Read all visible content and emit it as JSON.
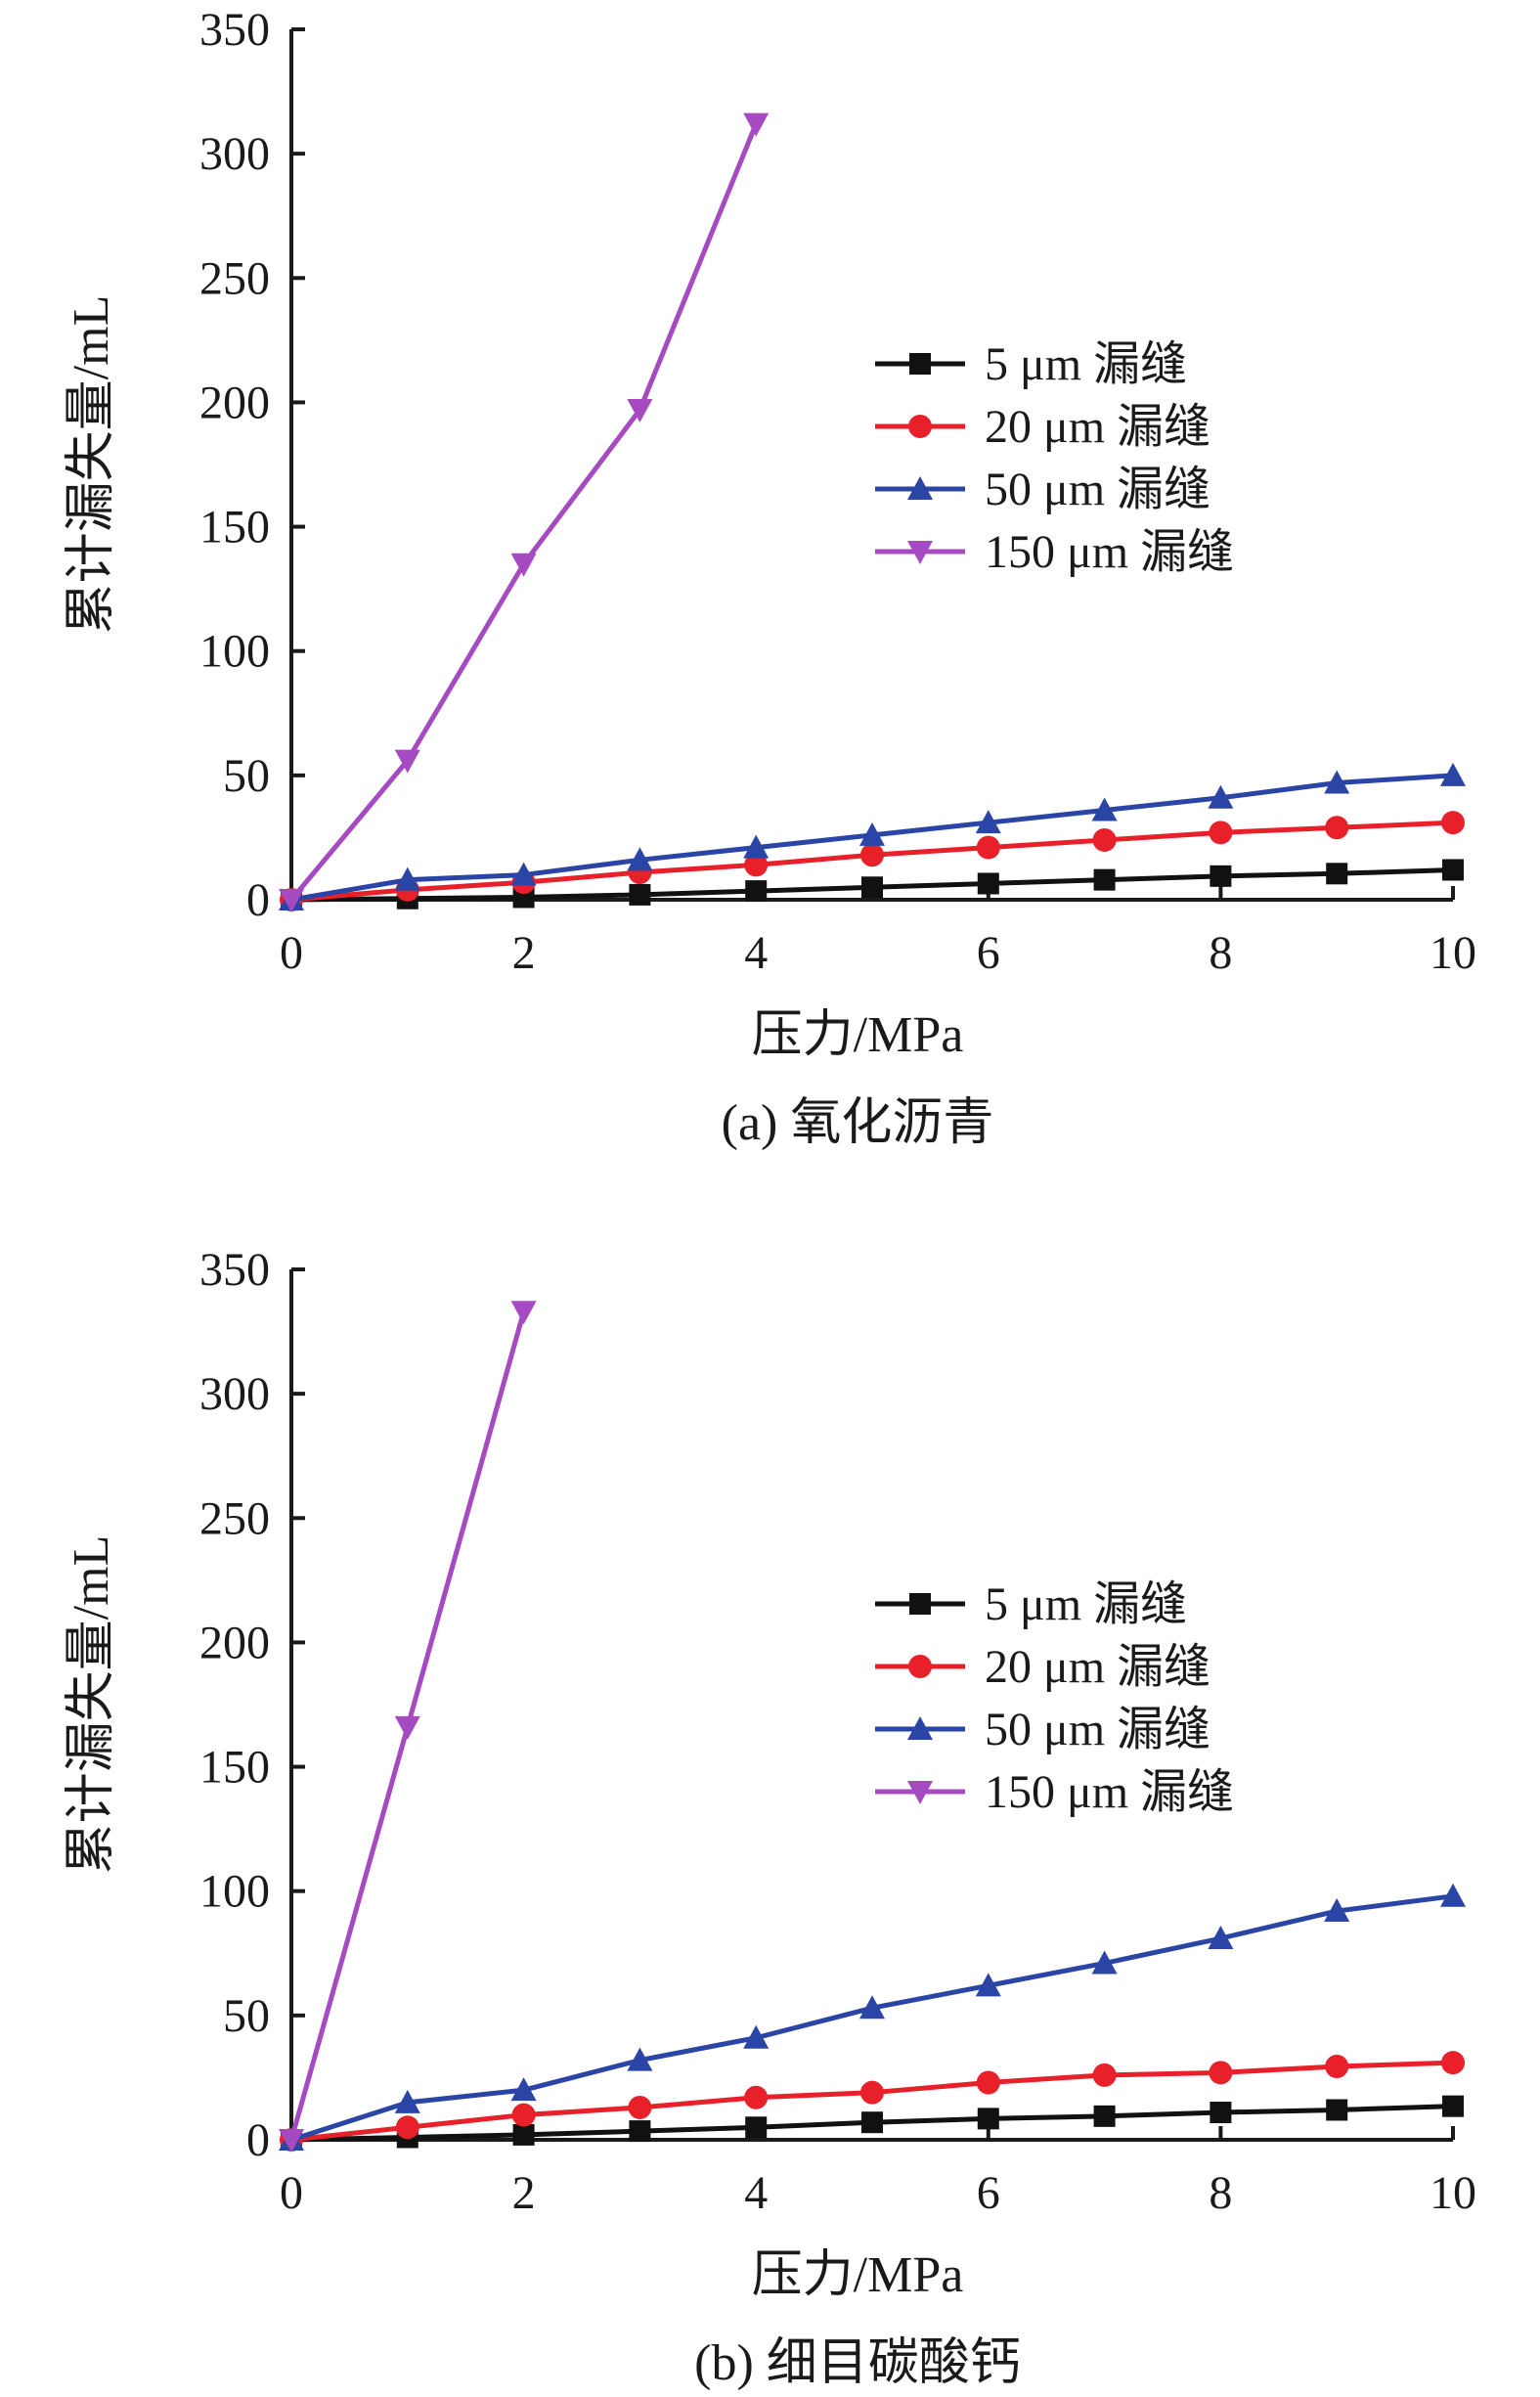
{
  "colors": {
    "axis": "#1a1a1a",
    "series_5um": "#111111",
    "series_20um": "#e8202a",
    "series_50um": "#2a45a6",
    "series_150um": "#a64ac2"
  },
  "chart_data": [
    {
      "type": "line",
      "caption": "(a) 氧化沥青",
      "xlabel": "压力/MPa",
      "ylabel": "累计漏失量/mL",
      "xlim": [
        0,
        10
      ],
      "ylim": [
        0,
        350
      ],
      "xticks": [
        "0",
        "2",
        "4",
        "6",
        "8",
        "10"
      ],
      "yticks": [
        "0",
        "50",
        "100",
        "150",
        "200",
        "250",
        "300",
        "350"
      ],
      "legend_position": "right-middle",
      "series": [
        {
          "name": "5 μm 漏缝",
          "marker": "square",
          "color": "#111111",
          "x": [
            0,
            1,
            2,
            3,
            4,
            5,
            6,
            7,
            8,
            9,
            10
          ],
          "y": [
            0,
            0.5,
            1,
            2,
            3.5,
            5,
            6.5,
            8,
            9.5,
            10.5,
            12
          ]
        },
        {
          "name": "20 μm 漏缝",
          "marker": "circle",
          "color": "#e8202a",
          "x": [
            0,
            1,
            2,
            3,
            4,
            5,
            6,
            7,
            8,
            9,
            10
          ],
          "y": [
            0,
            4,
            7,
            11,
            14,
            18,
            21,
            24,
            27,
            29,
            31
          ]
        },
        {
          "name": "50 μm 漏缝",
          "marker": "triangle-up",
          "color": "#2a45a6",
          "x": [
            0,
            1,
            2,
            3,
            4,
            5,
            6,
            7,
            8,
            9,
            10
          ],
          "y": [
            0,
            8,
            10,
            16,
            21,
            26,
            31,
            36,
            41,
            47,
            50
          ]
        },
        {
          "name": "150 μm 漏缝",
          "marker": "triangle-down",
          "color": "#a64ac2",
          "x": [
            0,
            1,
            2,
            3,
            4
          ],
          "y": [
            0,
            56,
            135,
            197,
            312
          ]
        }
      ]
    },
    {
      "type": "line",
      "caption": "(b) 细目碳酸钙",
      "xlabel": "压力/MPa",
      "ylabel": "累计漏失量/mL",
      "xlim": [
        0,
        10
      ],
      "ylim": [
        0,
        350
      ],
      "xticks": [
        "0",
        "2",
        "4",
        "6",
        "8",
        "10"
      ],
      "yticks": [
        "0",
        "50",
        "100",
        "150",
        "200",
        "250",
        "300",
        "350"
      ],
      "legend_position": "right-middle",
      "series": [
        {
          "name": "5 μm 漏缝",
          "marker": "square",
          "color": "#111111",
          "x": [
            0,
            1,
            2,
            3,
            4,
            5,
            6,
            7,
            8,
            9,
            10
          ],
          "y": [
            0,
            1,
            2,
            3.5,
            5,
            7,
            8.5,
            9.5,
            11,
            12,
            13.5
          ]
        },
        {
          "name": "20 μm 漏缝",
          "marker": "circle",
          "color": "#e8202a",
          "x": [
            0,
            1,
            2,
            3,
            4,
            5,
            6,
            7,
            8,
            9,
            10
          ],
          "y": [
            0,
            5,
            10,
            13,
            17,
            19,
            23,
            26,
            27,
            29.5,
            31
          ]
        },
        {
          "name": "50 μm 漏缝",
          "marker": "triangle-up",
          "color": "#2a45a6",
          "x": [
            0,
            1,
            2,
            3,
            4,
            5,
            6,
            7,
            8,
            9,
            10
          ],
          "y": [
            0,
            15,
            20,
            32,
            41,
            53,
            62,
            71,
            81,
            92,
            98
          ]
        },
        {
          "name": "150 μm 漏缝",
          "marker": "triangle-down",
          "color": "#a64ac2",
          "x": [
            0,
            1,
            2
          ],
          "y": [
            0,
            166,
            333
          ]
        }
      ]
    }
  ]
}
